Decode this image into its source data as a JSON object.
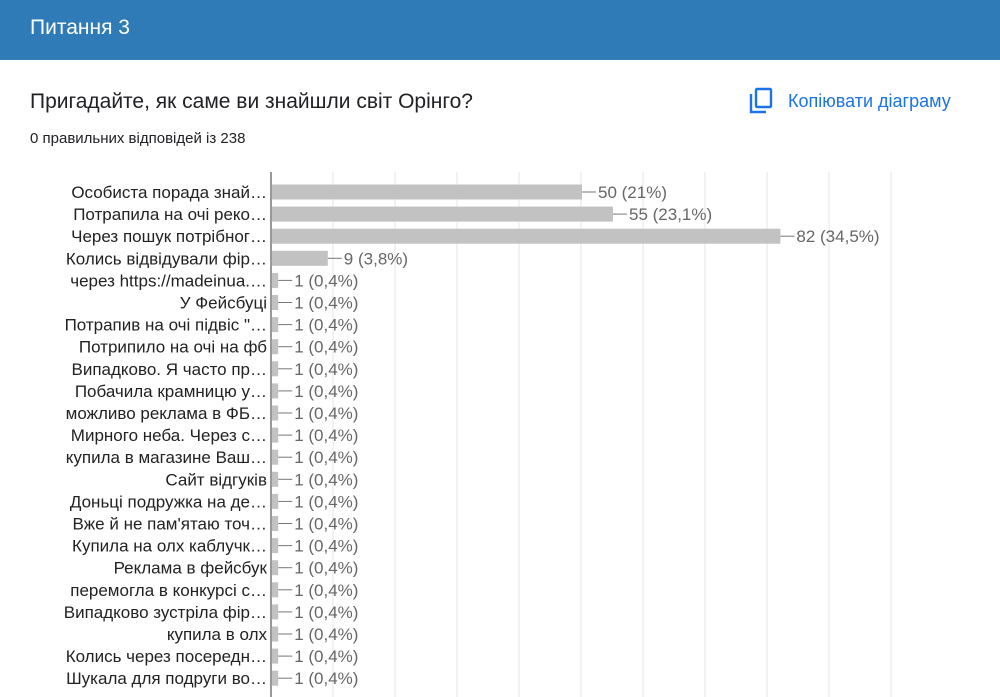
{
  "header": {
    "title": "Питання 3"
  },
  "question": {
    "text": "Пригадайте, як саме ви знайшли світ Орінго?"
  },
  "copy_button": {
    "label": "Копіювати діаграму",
    "icon": "copy-icon"
  },
  "summary": {
    "text": "0 правильних відповідей із 238"
  },
  "colors": {
    "header": "#2f7bb8",
    "bar": "#c2c2c2",
    "link": "#1a73e8"
  },
  "chart_data": {
    "type": "bar",
    "orientation": "horizontal",
    "total_responses": 238,
    "xlim": [
      0,
      82
    ],
    "categories": [
      "Особиста порада знай…",
      "Потрапила на очі реко…",
      "Через пошук потрібног…",
      "Колись відвідували фір…",
      "через https://madeinua.…",
      "У Фейсбуці",
      "Потрапив на очі підвіс \"…",
      "Потрипило на очі на фб",
      "Випадково. Я часто пр…",
      "Побачила крамницю у…",
      "можливо реклама в ФБ…",
      "Мирного неба. Через с…",
      "купила в магазине Ваш…",
      "Сайт відгуків",
      "Доньці подружка на де…",
      "Вже й не пам'ятаю точ…",
      "Купила на олх каблучк…",
      "Реклама в фейсбук",
      "перемогла в конкурсі с…",
      "Випадково зустріла фір…",
      "купила в олх",
      "Колись через посередн…",
      "Шукала для подруги во…"
    ],
    "values": [
      50,
      55,
      82,
      9,
      1,
      1,
      1,
      1,
      1,
      1,
      1,
      1,
      1,
      1,
      1,
      1,
      1,
      1,
      1,
      1,
      1,
      1,
      1
    ],
    "data_labels": [
      "50 (21%)",
      "55 (23,1%)",
      "82 (34,5%)",
      "9 (3,8%)",
      "1 (0,4%)",
      "1 (0,4%)",
      "1 (0,4%)",
      "1 (0,4%)",
      "1 (0,4%)",
      "1 (0,4%)",
      "1 (0,4%)",
      "1 (0,4%)",
      "1 (0,4%)",
      "1 (0,4%)",
      "1 (0,4%)",
      "1 (0,4%)",
      "1 (0,4%)",
      "1 (0,4%)",
      "1 (0,4%)",
      "1 (0,4%)",
      "1 (0,4%)",
      "1 (0,4%)",
      "1 (0,4%)"
    ]
  }
}
